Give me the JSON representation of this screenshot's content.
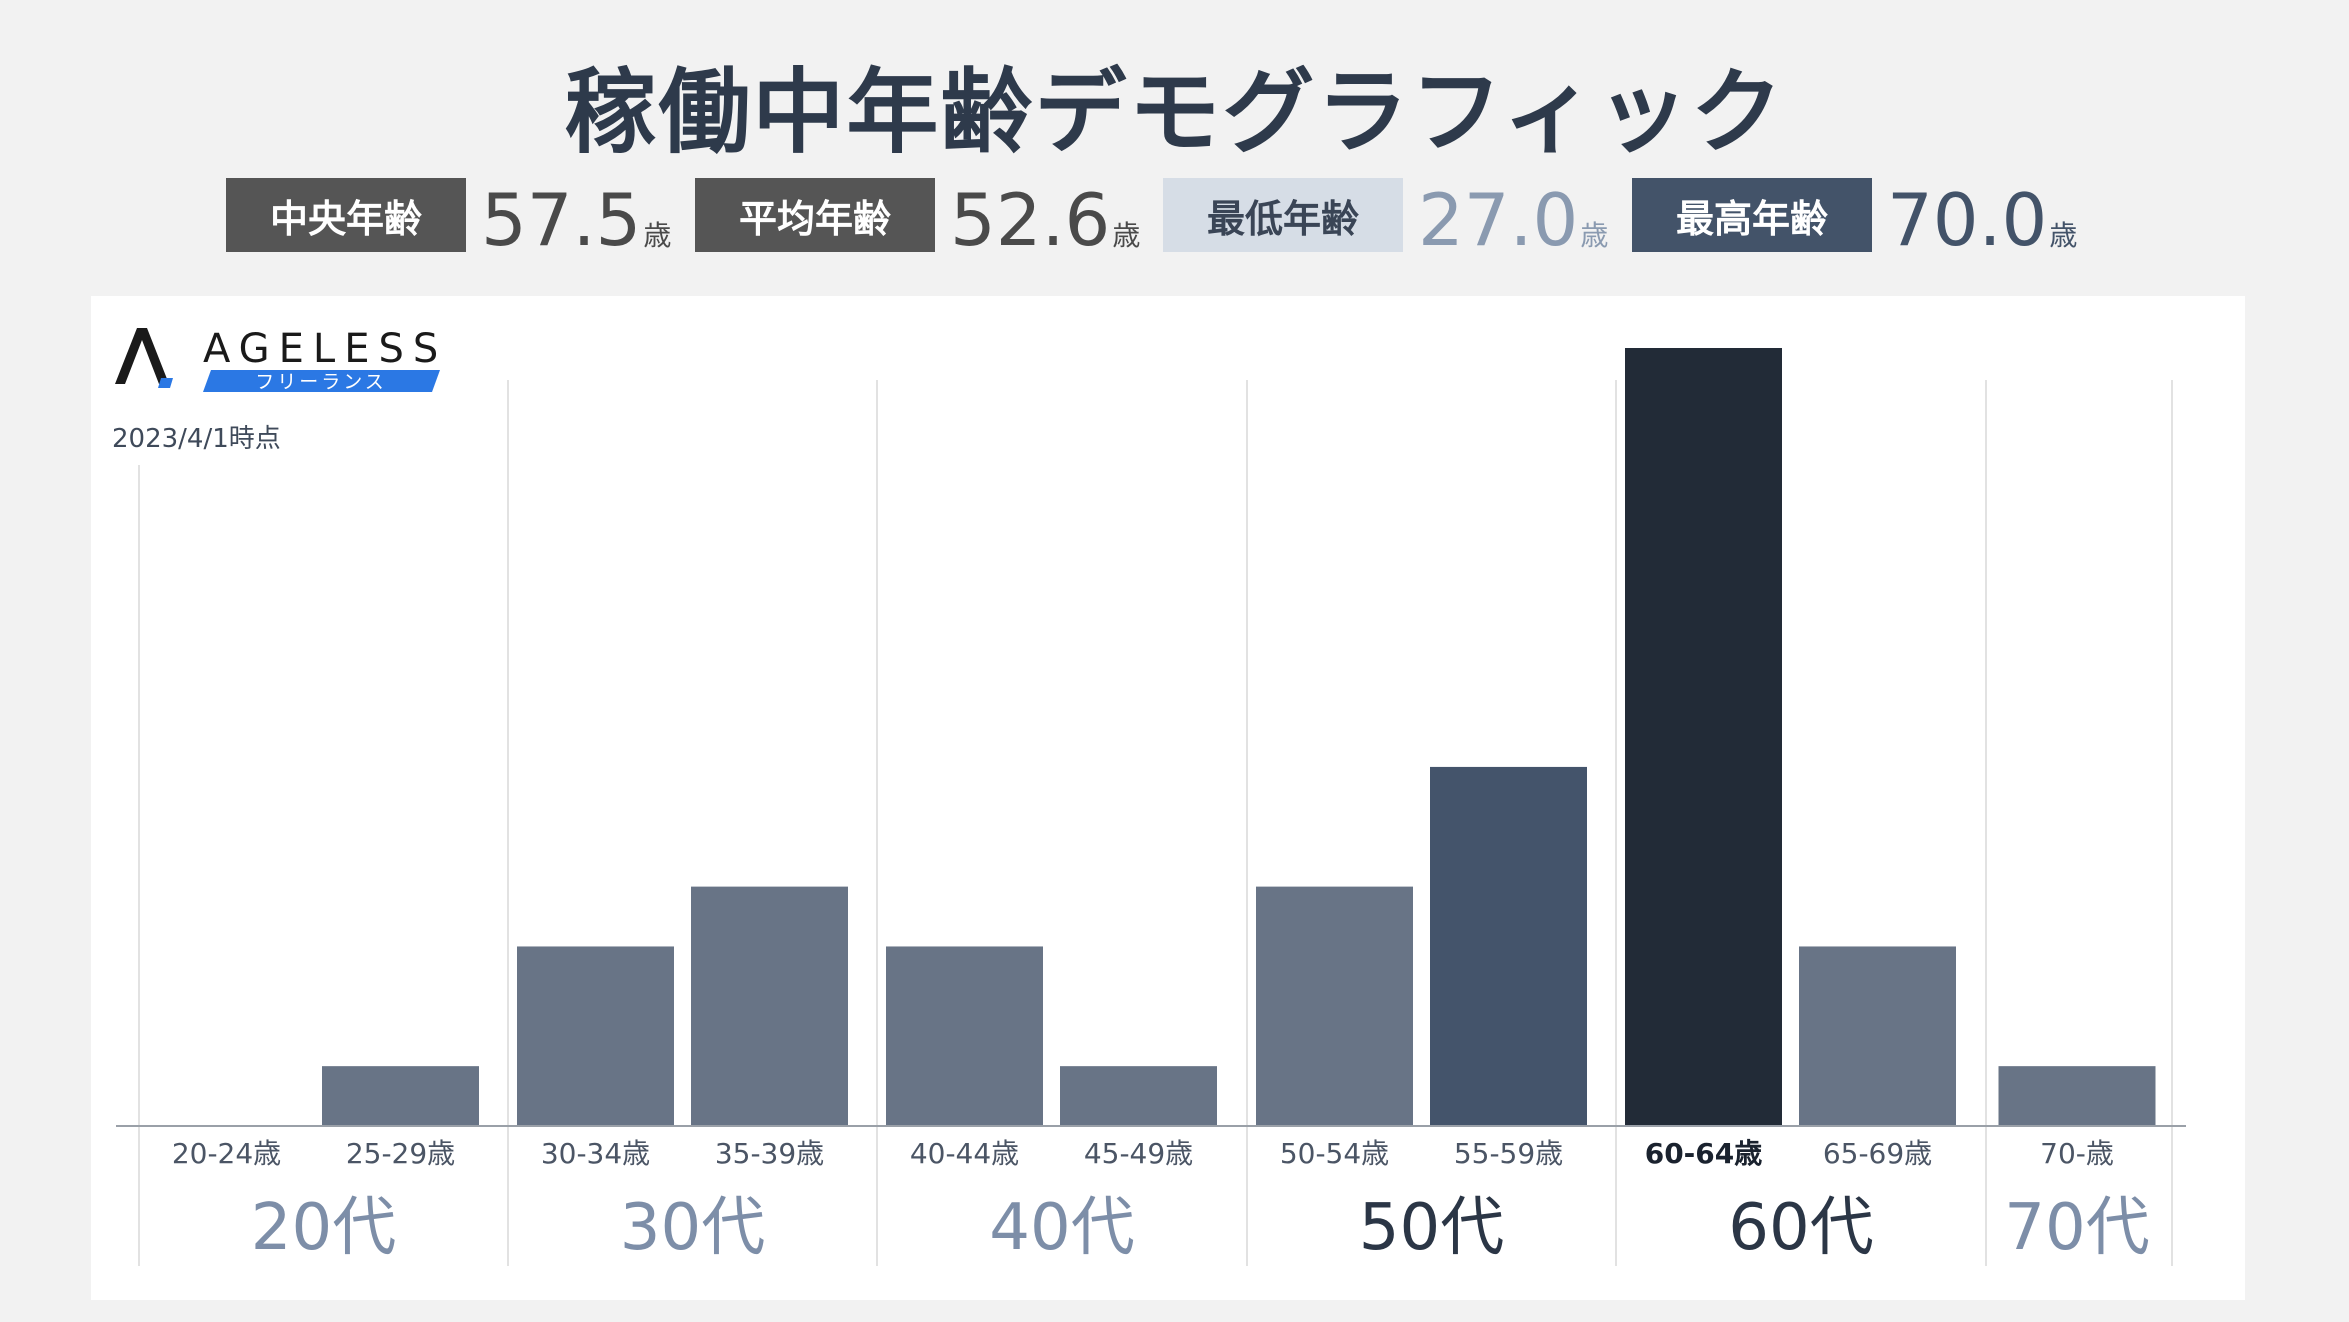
{
  "title": "稼働中年齢デモグラフィック",
  "stats": [
    {
      "label": "中央年齢",
      "value": "57.5",
      "unit": "歳",
      "badge_bg": "#555555",
      "badge_fg": "#ffffff",
      "value_color": "#4a4a4a"
    },
    {
      "label": "平均年齢",
      "value": "52.6",
      "unit": "歳",
      "badge_bg": "#555555",
      "badge_fg": "#ffffff",
      "value_color": "#4a4a4a"
    },
    {
      "label": "最低年齢",
      "value": "27.0",
      "unit": "歳",
      "badge_bg": "#d6dde6",
      "badge_fg": "#3a4556",
      "value_color": "#8a9ab0"
    },
    {
      "label": "最高年齢",
      "value": "70.0",
      "unit": "歳",
      "badge_bg": "#435369",
      "badge_fg": "#ffffff",
      "value_color": "#435369"
    }
  ],
  "logo": {
    "name": "AGELESS",
    "sub": "フリーランス",
    "accent": "#2b78e4",
    "mark_color": "#1a1a1a"
  },
  "as_of": "2023/4/1時点",
  "chart_data": {
    "type": "bar",
    "categories": [
      "20-24歳",
      "25-29歳",
      "30-34歳",
      "35-39歳",
      "40-44歳",
      "45-49歳",
      "50-54歳",
      "55-59歳",
      "60-64歳",
      "65-69歳",
      "70-歳"
    ],
    "values": [
      0,
      1,
      3,
      4,
      3,
      1,
      4,
      6,
      13,
      3,
      1
    ],
    "bar_colors": [
      "#687486",
      "#687486",
      "#687486",
      "#687486",
      "#687486",
      "#687486",
      "#687486",
      "#44546b",
      "#222b37",
      "#687486",
      "#687486"
    ],
    "label_colors": [
      "#4b5565",
      "#4b5565",
      "#4b5565",
      "#4b5565",
      "#4b5565",
      "#4b5565",
      "#4b5565",
      "#4b5565",
      "#1a222e",
      "#4b5565",
      "#4b5565"
    ],
    "label_bold": [
      false,
      false,
      false,
      false,
      false,
      false,
      false,
      false,
      true,
      false,
      false
    ],
    "groups": [
      {
        "label": "20代",
        "color": "#7d8ea8"
      },
      {
        "label": "30代",
        "color": "#7d8ea8"
      },
      {
        "label": "40代",
        "color": "#7d8ea8"
      },
      {
        "label": "50代",
        "color": "#2b3646"
      },
      {
        "label": "60代",
        "color": "#2b3646"
      },
      {
        "label": "70代",
        "color": "#7d8ea8"
      }
    ],
    "group_sizes": [
      2,
      2,
      2,
      2,
      2,
      1
    ],
    "ylim": [
      0,
      13
    ],
    "xlabel": "",
    "ylabel": "",
    "grid": false,
    "legend": "none"
  }
}
